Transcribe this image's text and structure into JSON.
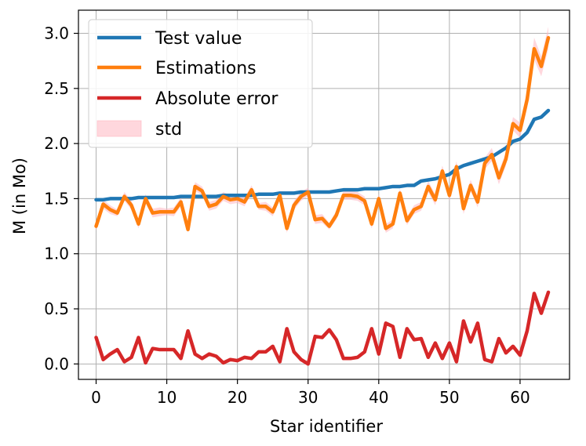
{
  "chart_data": {
    "type": "line",
    "xlabel": "Star identifier",
    "ylabel": "M (in Mo)",
    "xlim": [
      -2.5,
      67.0
    ],
    "ylim": [
      -0.14,
      3.21
    ],
    "xticks": [
      0,
      10,
      20,
      30,
      40,
      50,
      60
    ],
    "yticks": [
      0.0,
      0.5,
      1.0,
      1.5,
      2.0,
      2.5,
      3.0
    ],
    "xtick_labels": [
      "0",
      "10",
      "20",
      "30",
      "40",
      "50",
      "60"
    ],
    "ytick_labels": [
      "0.0",
      "0.5",
      "1.0",
      "1.5",
      "2.0",
      "2.5",
      "3.0"
    ],
    "grid": true,
    "legend": {
      "placement": "top-left",
      "entries": [
        {
          "label": "Test value",
          "kind": "line",
          "color": "#1f77b4"
        },
        {
          "label": "Estimations",
          "kind": "line",
          "color": "#ff7f0e"
        },
        {
          "label": "Absolute error",
          "kind": "line",
          "color": "#d62728"
        },
        {
          "label": "std",
          "kind": "fill",
          "color": "#ffb6c1"
        }
      ]
    },
    "x": [
      0,
      1,
      2,
      3,
      4,
      5,
      6,
      7,
      8,
      9,
      10,
      11,
      12,
      13,
      14,
      15,
      16,
      17,
      18,
      19,
      20,
      21,
      22,
      23,
      24,
      25,
      26,
      27,
      28,
      29,
      30,
      31,
      32,
      33,
      34,
      35,
      36,
      37,
      38,
      39,
      40,
      41,
      42,
      43,
      44,
      45,
      46,
      47,
      48,
      49,
      50,
      51,
      52,
      53,
      54,
      55,
      56,
      57,
      58,
      59,
      60,
      61,
      62,
      63,
      64
    ],
    "series": [
      {
        "name": "Test value",
        "color": "#1f77b4",
        "values": [
          1.49,
          1.49,
          1.5,
          1.5,
          1.5,
          1.5,
          1.51,
          1.51,
          1.51,
          1.51,
          1.51,
          1.51,
          1.52,
          1.52,
          1.52,
          1.52,
          1.52,
          1.52,
          1.53,
          1.53,
          1.53,
          1.53,
          1.53,
          1.54,
          1.54,
          1.54,
          1.55,
          1.55,
          1.55,
          1.56,
          1.56,
          1.56,
          1.56,
          1.56,
          1.57,
          1.58,
          1.58,
          1.58,
          1.59,
          1.59,
          1.59,
          1.6,
          1.61,
          1.61,
          1.62,
          1.62,
          1.66,
          1.67,
          1.68,
          1.7,
          1.72,
          1.77,
          1.8,
          1.82,
          1.84,
          1.86,
          1.88,
          1.92,
          1.96,
          2.02,
          2.04,
          2.1,
          2.22,
          2.24,
          2.3
        ]
      },
      {
        "name": "Estimations",
        "color": "#ff7f0e",
        "values": [
          1.25,
          1.45,
          1.4,
          1.37,
          1.52,
          1.44,
          1.27,
          1.5,
          1.37,
          1.38,
          1.38,
          1.38,
          1.47,
          1.22,
          1.61,
          1.57,
          1.43,
          1.45,
          1.52,
          1.49,
          1.5,
          1.47,
          1.58,
          1.43,
          1.43,
          1.38,
          1.53,
          1.23,
          1.44,
          1.52,
          1.56,
          1.31,
          1.32,
          1.25,
          1.35,
          1.53,
          1.53,
          1.52,
          1.48,
          1.27,
          1.5,
          1.23,
          1.27,
          1.55,
          1.3,
          1.4,
          1.43,
          1.61,
          1.49,
          1.75,
          1.53,
          1.79,
          1.41,
          1.62,
          1.47,
          1.82,
          1.9,
          1.69,
          1.86,
          2.18,
          2.12,
          2.4,
          2.86,
          2.7,
          2.96
        ]
      },
      {
        "name": "Absolute error",
        "color": "#d62728",
        "values": [
          0.24,
          0.04,
          0.09,
          0.13,
          0.02,
          0.06,
          0.24,
          0.01,
          0.14,
          0.13,
          0.13,
          0.13,
          0.05,
          0.3,
          0.09,
          0.05,
          0.09,
          0.07,
          0.01,
          0.04,
          0.03,
          0.06,
          0.05,
          0.11,
          0.11,
          0.16,
          0.02,
          0.32,
          0.11,
          0.04,
          0.0,
          0.25,
          0.24,
          0.31,
          0.22,
          0.05,
          0.05,
          0.06,
          0.11,
          0.32,
          0.09,
          0.37,
          0.34,
          0.06,
          0.32,
          0.22,
          0.23,
          0.06,
          0.19,
          0.05,
          0.19,
          0.02,
          0.39,
          0.2,
          0.37,
          0.04,
          0.02,
          0.23,
          0.1,
          0.16,
          0.08,
          0.3,
          0.64,
          0.46,
          0.65
        ]
      }
    ],
    "std_band": {
      "name": "std",
      "color": "#ffb6c1",
      "lower": [
        1.21,
        1.41,
        1.36,
        1.34,
        1.48,
        1.4,
        1.23,
        1.46,
        1.33,
        1.34,
        1.35,
        1.34,
        1.43,
        1.19,
        1.57,
        1.53,
        1.39,
        1.41,
        1.48,
        1.45,
        1.46,
        1.43,
        1.54,
        1.4,
        1.39,
        1.34,
        1.49,
        1.19,
        1.4,
        1.48,
        1.52,
        1.27,
        1.28,
        1.22,
        1.31,
        1.49,
        1.49,
        1.48,
        1.44,
        1.23,
        1.46,
        1.19,
        1.23,
        1.51,
        1.26,
        1.36,
        1.39,
        1.56,
        1.44,
        1.7,
        1.48,
        1.74,
        1.36,
        1.57,
        1.42,
        1.77,
        1.84,
        1.63,
        1.8,
        2.12,
        2.05,
        2.32,
        2.76,
        2.61,
        2.86
      ],
      "upper": [
        1.29,
        1.49,
        1.44,
        1.4,
        1.56,
        1.48,
        1.31,
        1.54,
        1.41,
        1.42,
        1.41,
        1.42,
        1.51,
        1.25,
        1.65,
        1.61,
        1.47,
        1.49,
        1.56,
        1.53,
        1.54,
        1.51,
        1.62,
        1.46,
        1.47,
        1.42,
        1.57,
        1.27,
        1.48,
        1.56,
        1.6,
        1.35,
        1.36,
        1.28,
        1.39,
        1.57,
        1.57,
        1.56,
        1.52,
        1.31,
        1.54,
        1.27,
        1.31,
        1.59,
        1.34,
        1.44,
        1.47,
        1.66,
        1.54,
        1.8,
        1.58,
        1.84,
        1.46,
        1.67,
        1.52,
        1.87,
        1.96,
        1.75,
        1.92,
        2.24,
        2.19,
        2.48,
        2.96,
        2.79,
        3.06
      ]
    }
  }
}
